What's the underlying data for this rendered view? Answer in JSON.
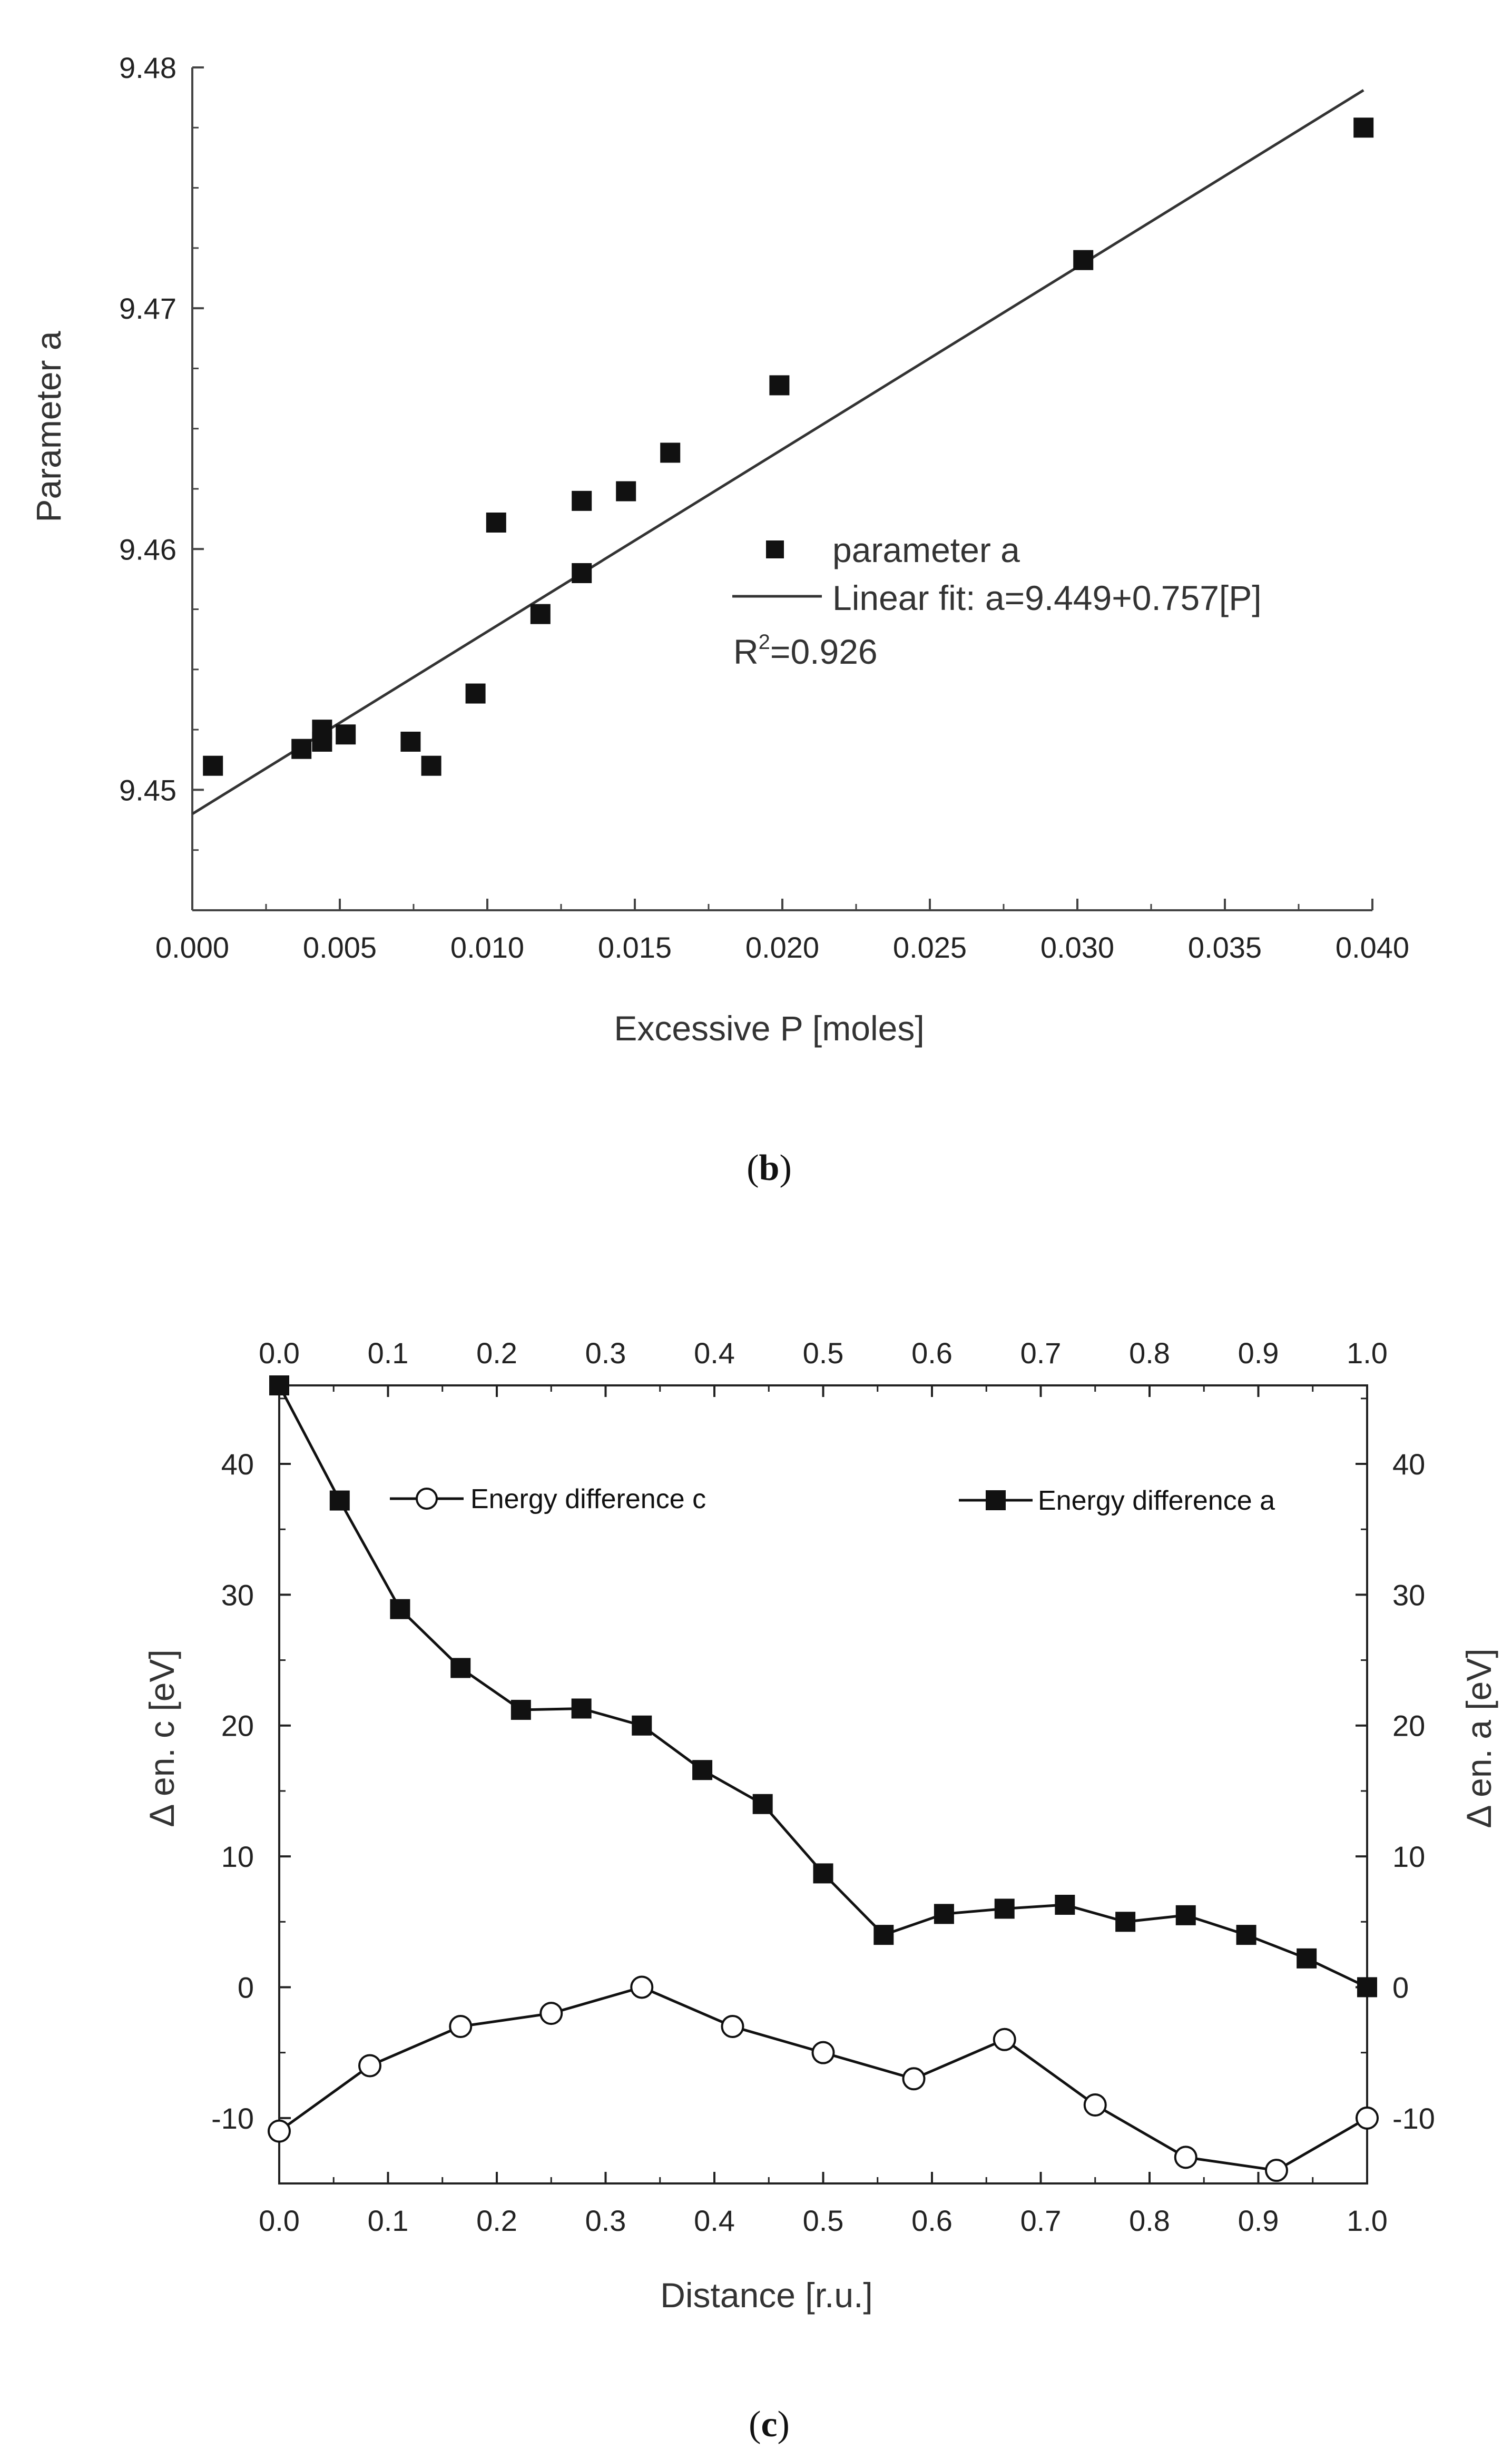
{
  "chart_data": [
    {
      "type": "scatter",
      "panel_label": "b",
      "xlabel": "Excessive P [moles]",
      "ylabel": "Parameter a",
      "xlim": [
        0.0,
        0.04
      ],
      "ylim": [
        9.445,
        9.48
      ],
      "xticks": [
        "0.000",
        "0.005",
        "0.010",
        "0.015",
        "0.020",
        "0.025",
        "0.030",
        "0.035",
        "0.040"
      ],
      "yticks": [
        "9.45",
        "9.46",
        "9.47",
        "9.48"
      ],
      "series": [
        {
          "name": "parameter a",
          "x": [
            0.0007,
            0.0037,
            0.0044,
            0.0044,
            0.0052,
            0.0074,
            0.0081,
            0.0096,
            0.0103,
            0.0118,
            0.0132,
            0.0132,
            0.0147,
            0.0162,
            0.0199,
            0.0302,
            0.0397
          ],
          "y": [
            9.451,
            9.4517,
            9.452,
            9.4525,
            9.4523,
            9.452,
            9.451,
            9.454,
            9.4611,
            9.4573,
            9.462,
            9.459,
            9.4624,
            9.464,
            9.4668,
            9.472,
            9.4775
          ]
        }
      ],
      "fit": {
        "intercept": 9.449,
        "slope": 0.757
      },
      "legend": {
        "points": "parameter a",
        "fit": "Linear fit: a=9.449+0.757[P]",
        "r2_prefix": "R",
        "r2_sup": "2",
        "r2_value": "=0.926"
      }
    },
    {
      "type": "line",
      "panel_label": "c",
      "xlabel": "Distance [r.u.]",
      "ylabel_left": "Δ en. c [eV]",
      "ylabel_right": "Δ en. a [eV]",
      "xlim": [
        0.0,
        1.0
      ],
      "ylim": [
        -15,
        46
      ],
      "xticks": [
        "0.0",
        "0.1",
        "0.2",
        "0.3",
        "0.4",
        "0.5",
        "0.6",
        "0.7",
        "0.8",
        "0.9",
        "1.0"
      ],
      "yticks": [
        "-10",
        "0",
        "10",
        "20",
        "30",
        "40"
      ],
      "series": [
        {
          "name": "Energy difference c",
          "marker": "circle-open",
          "x": [
            0.0,
            0.0833,
            0.1667,
            0.25,
            0.3333,
            0.4167,
            0.5,
            0.5833,
            0.6667,
            0.75,
            0.8333,
            0.9167,
            1.0
          ],
          "y": [
            -11,
            -6,
            -3,
            -2,
            0,
            -3,
            -5,
            -7,
            -4,
            -9,
            -13,
            -14,
            -10
          ]
        },
        {
          "name": "Energy difference a",
          "marker": "square-filled",
          "x": [
            0.0,
            0.0556,
            0.1111,
            0.1667,
            0.2222,
            0.2778,
            0.3333,
            0.3889,
            0.4444,
            0.5,
            0.5556,
            0.6111,
            0.6667,
            0.7222,
            0.7778,
            0.8333,
            0.8889,
            0.9444,
            1.0
          ],
          "y": [
            46,
            37.2,
            28.9,
            24.4,
            21.2,
            21.3,
            20,
            16.6,
            14,
            8.7,
            4,
            5.6,
            6,
            6.3,
            5,
            5.5,
            4,
            2.2,
            0
          ]
        }
      ]
    }
  ]
}
